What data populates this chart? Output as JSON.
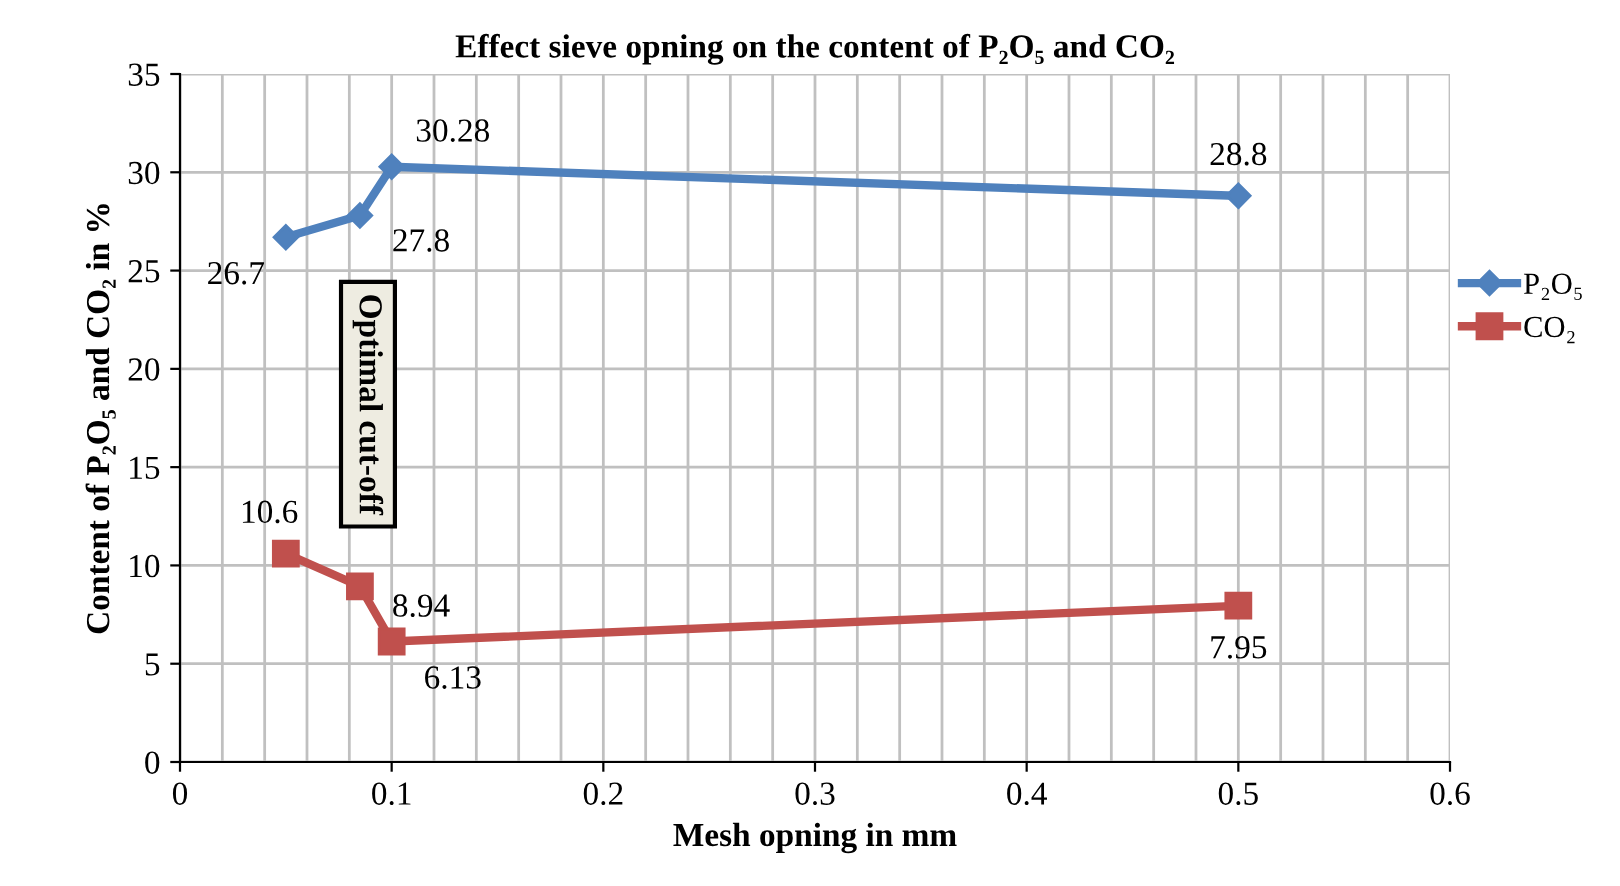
{
  "chart_data": {
    "type": "line",
    "title": "Effect sieve opning on the content of P₂O₅ and CO₂",
    "xlabel": "Mesh opning in mm",
    "ylabel": "Content of P₂O₅ and CO₂ in %",
    "series": [
      {
        "name": "P₂O₅",
        "color": "#4f81bd",
        "x": [
          0.05,
          0.085,
          0.1,
          0.5
        ],
        "values": [
          26.7,
          27.8,
          30.28,
          28.8
        ],
        "marker": "diamond"
      },
      {
        "name": "CO₂",
        "color": "#c0504d",
        "x": [
          0.05,
          0.085,
          0.1,
          0.5
        ],
        "values": [
          10.6,
          8.94,
          6.13,
          7.95
        ],
        "marker": "square"
      }
    ],
    "xlim": [
      0,
      0.6
    ],
    "xticks": [
      0,
      0.1,
      0.2,
      0.3,
      0.4,
      0.5,
      0.6
    ],
    "ylim": [
      0,
      35
    ],
    "yticks": [
      0,
      5,
      10,
      15,
      20,
      25,
      30,
      35
    ],
    "grid": true,
    "legend": "right",
    "data_labels": true,
    "line_style": "solid",
    "annotations": [
      "Optimal cut-off"
    ]
  }
}
